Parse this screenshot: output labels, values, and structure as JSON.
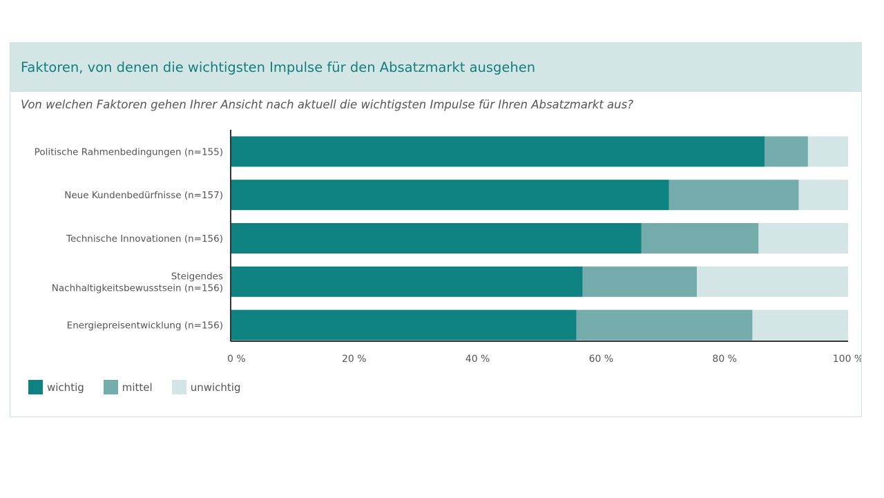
{
  "header": {
    "title": "Faktoren, von denen die wichtigsten Impulse für den Absatzmarkt ausgehen",
    "subtitle": "Von welchen Faktoren gehen Ihrer Ansicht nach aktuell die wichtigsten Impulse für Ihren Absatzmarkt aus?"
  },
  "colors": {
    "wichtig": "#0d8280",
    "mittel": "#74abab",
    "unwichtig": "#d3e5e4",
    "axis": "#555555",
    "header_bg": "#d3e5e4",
    "title": "#127f7d"
  },
  "chart_data": {
    "type": "bar",
    "orientation": "horizontal",
    "stacked": true,
    "categories": [
      [
        "Politische Rahmenbedingungen (n=155)"
      ],
      [
        "Neue Kundenbedürfnisse (n=157)"
      ],
      [
        "Technische Innovationen (n=156)"
      ],
      [
        "Steigendes",
        "Nachhaltigkeitsbewusstsein (n=156)"
      ],
      [
        "Energiepreisentwicklung (n=156)"
      ]
    ],
    "series": [
      {
        "name": "wichtig",
        "values": [
          86.5,
          71,
          66.5,
          57,
          56
        ]
      },
      {
        "name": "mittel",
        "values": [
          7,
          21,
          19,
          18.5,
          28.5
        ]
      },
      {
        "name": "unwichtig",
        "values": [
          6.5,
          8,
          14.5,
          24.5,
          15.5
        ]
      }
    ],
    "xlim": [
      0,
      100
    ],
    "xticks": [
      "0 %",
      "20 %",
      "40 %",
      "60 %",
      "80 %",
      "100 %"
    ],
    "grid": false,
    "legend_position": "bottom-left"
  }
}
